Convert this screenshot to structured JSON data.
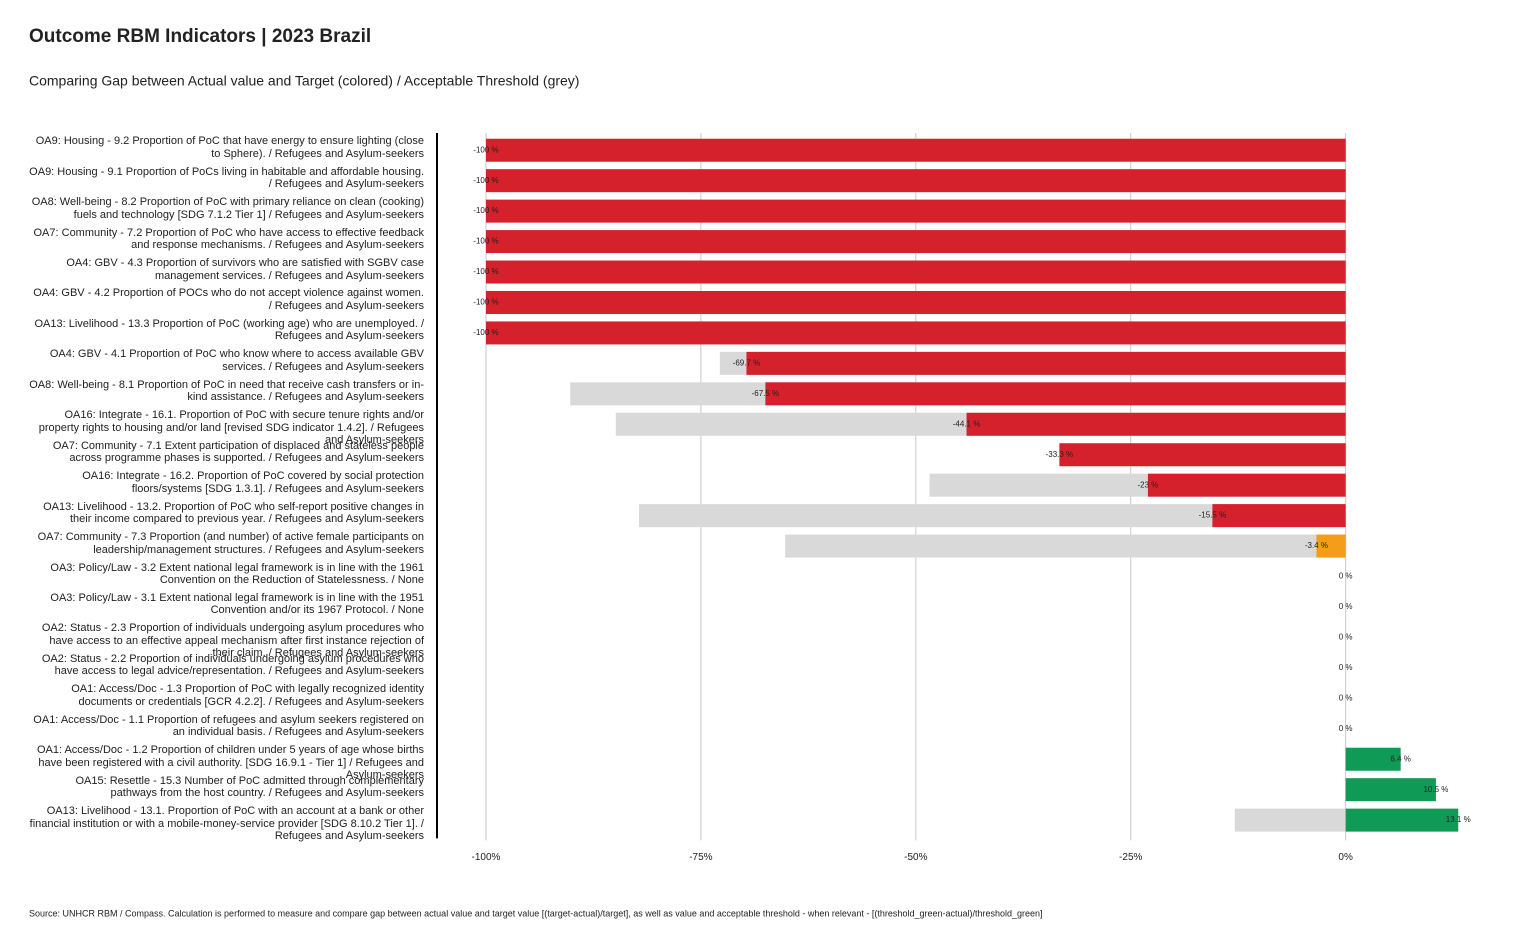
{
  "chart_data": {
    "type": "bar",
    "orientation": "horizontal",
    "title": "Outcome RBM Indicators | 2023 Brazil",
    "subtitle": "Comparing Gap between Actual value and Target (colored) / Acceptable Threshold (grey)",
    "source": "Source: UNHCR RBM / Compass. Calculation is performed to measure and compare gap between actual value and target value [(target-actual)/target], as well as value and acceptable threshold - when relevant - [(threshold_green-actual)/threshold_green]",
    "categories": [
      "OA9: Housing - 9.2 Proportion of PoC that have energy to ensure lighting (close to Sphere). / Refugees and Asylum-seekers",
      "OA9: Housing - 9.1 Proportion of PoCs living in habitable and affordable housing. / Refugees and Asylum-seekers",
      "OA8: Well-being - 8.2 Proportion of PoC with primary reliance on clean (cooking) fuels and technology [SDG 7.1.2 Tier 1] / Refugees and Asylum-seekers",
      "OA7: Community - 7.2 Proportion of PoC who have access to effective feedback and response mechanisms. / Refugees and Asylum-seekers",
      "OA4: GBV - 4.3 Proportion of survivors who are satisfied with SGBV case management services. / Refugees and Asylum-seekers",
      "OA4: GBV - 4.2 Proportion of POCs who do not accept violence against women. / Refugees and Asylum-seekers",
      "OA13: Livelihood - 13.3 Proportion of PoC (working age) who are unemployed. / Refugees and Asylum-seekers",
      "OA4: GBV - 4.1 Proportion of PoC who know where to access available GBV services. / Refugees and Asylum-seekers",
      "OA8: Well-being - 8.1 Proportion of PoC in need that receive cash transfers or in-kind assistance. / Refugees and Asylum-seekers",
      "OA16: Integrate - 16.1. Proportion of PoC with secure tenure rights and/or property rights to housing and/or land [revised SDG indicator 1.4.2]. / Refugees and Asylum-seekers",
      "OA7: Community - 7.1 Extent participation of displaced and stateless people across programme phases is supported. / Refugees and Asylum-seekers",
      "OA16: Integrate - 16.2. Proportion of PoC covered by social protection floors/systems [SDG 1.3.1]. / Refugees and Asylum-seekers",
      "OA13: Livelihood - 13.2. Proportion of PoC who self-report positive changes in their income compared to previous year. / Refugees and Asylum-seekers",
      "OA7: Community - 7.3 Proportion (and number) of active female participants on leadership/management structures. / Refugees and Asylum-seekers",
      "OA3: Policy/Law - 3.2 Extent national legal framework is in line with the 1961 Convention on the Reduction of Statelessness. / None",
      "OA3: Policy/Law - 3.1 Extent national legal framework is in line with the 1951 Convention and/or its 1967 Protocol. / None",
      "OA2: Status - 2.3 Proportion of individuals undergoing asylum procedures who have access to an effective appeal mechanism after first instance rejection of their claim. / Refugees and Asylum-seekers",
      "OA2: Status - 2.2 Proportion of individuals undergoing asylum procedures who have access to legal advice/representation. / Refugees and Asylum-seekers",
      "OA1: Access/Doc - 1.3 Proportion of PoC with legally recognized identity documents or credentials [GCR 4.2.2]. / Refugees and Asylum-seekers",
      "OA1: Access/Doc - 1.1 Proportion of refugees and asylum seekers registered on an individual basis. / Refugees and Asylum-seekers",
      "OA1: Access/Doc - 1.2 Proportion of children under 5 years of age whose births have been registered with a civil authority. [SDG 16.9.1 - Tier 1] / Refugees and Asylum-seekers",
      "OA15: Resettle - 15.3 Number of PoC admitted through complementary pathways from the host country. / Refugees and Asylum-seekers",
      "OA13: Livelihood - 13.1. Proportion of PoC with an account at a bank or other financial institution or with a mobile-money-service provider [SDG 8.10.2 Tier 1]. / Refugees and Asylum-seekers"
    ],
    "values": [
      -100,
      -100,
      -100,
      -100,
      -100,
      -100,
      -100,
      -69.7,
      -67.5,
      -44.1,
      -33.3,
      -23,
      -15.5,
      -3.4,
      0,
      0,
      0,
      0,
      0,
      0,
      6.4,
      10.5,
      13.1
    ],
    "value_labels": [
      "-100 %",
      "-100 %",
      "-100 %",
      "-100 %",
      "-100 %",
      "-100 %",
      "-100 %",
      "-69.7 %",
      "-67.5 %",
      "-44.1 %",
      "-33.3 %",
      "-23 %",
      "-15.5 %",
      "-3.4 %",
      "0 %",
      "0 %",
      "0 %",
      "0 %",
      "0 %",
      "0 %",
      "6.4 %",
      "10.5 %",
      "13.1 %"
    ],
    "colors": [
      "#d4212c",
      "#d4212c",
      "#d4212c",
      "#d4212c",
      "#d4212c",
      "#d4212c",
      "#d4212c",
      "#d4212c",
      "#d4212c",
      "#d4212c",
      "#d4212c",
      "#d4212c",
      "#d4212c",
      "#f59c1a",
      "#0f9a55",
      "#0f9a55",
      "#0f9a55",
      "#0f9a55",
      "#0f9a55",
      "#0f9a55",
      "#0f9a55",
      "#0f9a55",
      "#0f9a55"
    ],
    "threshold": [
      null,
      null,
      null,
      null,
      null,
      null,
      null,
      -72.8,
      -90.2,
      -84.9,
      null,
      -48.4,
      -82.2,
      -65.2,
      null,
      null,
      null,
      null,
      null,
      null,
      null,
      null,
      -12.9
    ],
    "threshold_color": "#d9d9d9",
    "xlim": [
      -105,
      14
    ],
    "xticks": [
      {
        "value": -100,
        "label": "-100%"
      },
      {
        "value": -75,
        "label": "-75%"
      },
      {
        "value": -50,
        "label": "-50%"
      },
      {
        "value": -25,
        "label": "-25%"
      },
      {
        "value": 0,
        "label": "0%"
      }
    ],
    "grid": true
  }
}
